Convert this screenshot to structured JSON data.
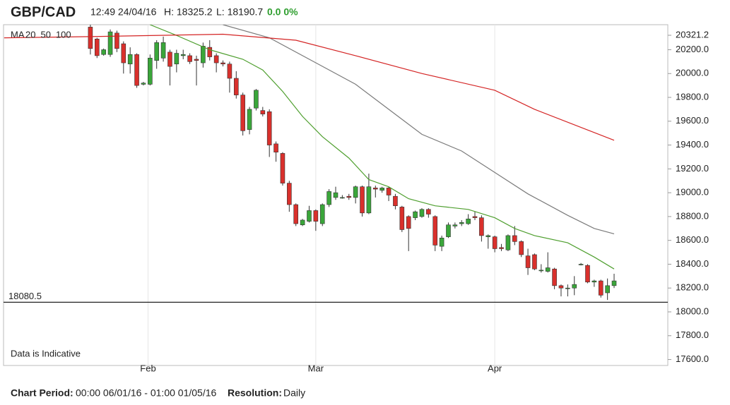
{
  "chart_data": {
    "type": "candlestick",
    "title": "GBP/CAD",
    "timestamp": "12:49 24/04/16",
    "high_text": "H: 18325.2",
    "low_text": "L: 18190.7",
    "change_text": "0.0 0%",
    "note": "Data is Indicative",
    "period_label": "Chart Period:",
    "period": "00:00 06/01/16 - 01:00 01/05/16",
    "resolution_label": "Resolution:",
    "resolution": "Daily",
    "up_color": "#3aa63a",
    "down_color": "#d9302c",
    "xlim": [
      -13.1,
      87.1
    ],
    "xticks": [
      {
        "value": 8.7,
        "label": "Feb"
      },
      {
        "value": 34,
        "label": "Mar"
      },
      {
        "value": 61,
        "label": "Apr"
      }
    ],
    "ylim": [
      17550,
      20410
    ],
    "yticks": [
      {
        "value": 17600,
        "label": "17600.0"
      },
      {
        "value": 17800,
        "label": "17800.0"
      },
      {
        "value": 18000,
        "label": "18000.0"
      },
      {
        "value": 18200,
        "label": "18200.0"
      },
      {
        "value": 18400,
        "label": "18400.0"
      },
      {
        "value": 18600,
        "label": "18600.0"
      },
      {
        "value": 18800,
        "label": "18800.0"
      },
      {
        "value": 19000,
        "label": "19000.0"
      },
      {
        "value": 19200,
        "label": "19200.0"
      },
      {
        "value": 19400,
        "label": "19400.0"
      },
      {
        "value": 19600,
        "label": "19600.0"
      },
      {
        "value": 19800,
        "label": "19800.0"
      },
      {
        "value": 20000,
        "label": "20000.0"
      },
      {
        "value": 20200,
        "label": "20200.0"
      },
      20321.2
    ],
    "reference_line": 18080.5,
    "x": [
      0,
      1,
      2,
      3,
      4,
      5,
      6,
      7,
      8,
      9,
      10,
      11,
      12,
      13,
      14,
      15,
      16,
      17,
      18,
      19,
      20,
      21,
      22,
      23,
      24,
      25,
      26,
      27,
      28,
      29,
      30,
      31,
      32,
      33,
      34,
      35,
      36,
      37,
      38,
      39,
      40,
      41,
      42,
      43,
      44,
      45,
      46,
      47,
      48,
      49,
      50,
      51,
      52,
      53,
      54,
      55,
      56,
      57,
      58,
      59,
      60,
      61,
      62,
      63,
      64,
      65,
      66,
      67,
      68,
      69,
      70,
      71,
      72,
      73,
      74,
      75,
      76,
      77,
      78,
      79
    ],
    "open": [
      20390,
      20290,
      20160,
      20160,
      20340,
      20250,
      20080,
      20160,
      19910,
      19910,
      20110,
      20130,
      20180,
      20080,
      20150,
      20150,
      20120,
      20090,
      20220,
      20150,
      20090,
      20080,
      19960,
      19820,
      19530,
      19710,
      19690,
      19680,
      19410,
      19330,
      19080,
      18900,
      18730,
      18760,
      18850,
      18740,
      18900,
      18960,
      18960,
      18970,
      18960,
      19050,
      18830,
      19040,
      19020,
      19040,
      18970,
      18880,
      18800,
      18790,
      18800,
      18860,
      18800,
      18550,
      18630,
      18720,
      18740,
      18740,
      18800,
      18790,
      18630,
      18630,
      18540,
      18520,
      18640,
      18590,
      18470,
      18480,
      18350,
      18340,
      18360,
      18220,
      18200,
      18200,
      18400,
      18390,
      18250,
      18260,
      18160,
      18220
    ],
    "high": [
      20410,
      20300,
      20210,
      20370,
      20360,
      20270,
      20220,
      20170,
      19930,
      20160,
      20280,
      20310,
      20200,
      20200,
      20200,
      20170,
      20150,
      20260,
      20280,
      20170,
      20110,
      20100,
      20020,
      19840,
      19720,
      19870,
      19720,
      19700,
      19430,
      19340,
      19100,
      18910,
      18780,
      18890,
      18860,
      18910,
      19030,
      19050,
      18980,
      18990,
      19060,
      19060,
      19160,
      19060,
      19050,
      19050,
      18990,
      18890,
      18810,
      18850,
      18870,
      18870,
      18810,
      18640,
      18750,
      18750,
      18770,
      18820,
      18840,
      18810,
      18650,
      18640,
      18570,
      18650,
      18720,
      18600,
      18530,
      18490,
      18400,
      18500,
      18370,
      18230,
      18230,
      18300,
      18410,
      18400,
      18270,
      18270,
      18280,
      18320
    ],
    "low": [
      20160,
      20130,
      20150,
      20140,
      20180,
      20000,
      20000,
      19880,
      19900,
      19900,
      20040,
      20100,
      19900,
      20010,
      20120,
      20080,
      19900,
      20050,
      20110,
      20010,
      20060,
      19840,
      19790,
      19480,
      19490,
      19690,
      19640,
      19300,
      19260,
      19060,
      18840,
      18720,
      18720,
      18750,
      18680,
      18720,
      18880,
      18940,
      18950,
      18940,
      18910,
      18800,
      18820,
      18960,
      19000,
      18930,
      18860,
      18670,
      18510,
      18770,
      18790,
      18790,
      18510,
      18510,
      18620,
      18700,
      18720,
      18730,
      18770,
      18590,
      18530,
      18500,
      18510,
      18510,
      18560,
      18460,
      18310,
      18350,
      18330,
      18330,
      18190,
      18130,
      18130,
      18140,
      18390,
      18240,
      18210,
      18120,
      18100,
      18200
    ],
    "close": [
      20210,
      20150,
      20200,
      20350,
      20210,
      20090,
      20160,
      19900,
      19920,
      20130,
      20260,
      20260,
      20060,
      20170,
      20160,
      20100,
      20110,
      20230,
      20140,
      20090,
      20080,
      19960,
      19820,
      19520,
      19700,
      19860,
      19660,
      19400,
      19340,
      19080,
      18900,
      18740,
      18770,
      18850,
      18760,
      18900,
      19010,
      19000,
      18960,
      18960,
      19050,
      18830,
      19050,
      19030,
      19040,
      18980,
      18890,
      18690,
      18700,
      18840,
      18860,
      18820,
      18560,
      18620,
      18730,
      18730,
      18750,
      18780,
      18790,
      18640,
      18640,
      18530,
      18530,
      18640,
      18590,
      18480,
      18370,
      18360,
      18350,
      18370,
      18220,
      18200,
      18200,
      18230,
      18400,
      18250,
      18260,
      18140,
      18220,
      18260
    ],
    "moving_averages": {
      "label": "MA",
      "series": [
        {
          "name": "20",
          "color": "#4f9f2f",
          "x": [
            9,
            13,
            18,
            23,
            26,
            29,
            32,
            35,
            39,
            42,
            45,
            48,
            52,
            57,
            61,
            64,
            67,
            72,
            76,
            79
          ],
          "values": [
            20410,
            20320,
            20200,
            20120,
            20030,
            19850,
            19640,
            19470,
            19290,
            19110,
            19050,
            18950,
            18890,
            18860,
            18790,
            18700,
            18640,
            18580,
            18460,
            18360
          ]
        },
        {
          "name": "50",
          "color": "#7a7a7a",
          "x": [
            20,
            27,
            34,
            40,
            45,
            50,
            56,
            61,
            66,
            72,
            76,
            79
          ],
          "values": [
            20410,
            20300,
            20090,
            19910,
            19700,
            19490,
            19350,
            19170,
            18990,
            18810,
            18700,
            18655
          ]
        },
        {
          "name": "100",
          "color": "#d42424",
          "x": [
            -13,
            0,
            20,
            31,
            40,
            50,
            61,
            67,
            79
          ],
          "values": [
            20300,
            20310,
            20330,
            20280,
            20150,
            20000,
            19860,
            19700,
            19440
          ]
        }
      ]
    }
  }
}
